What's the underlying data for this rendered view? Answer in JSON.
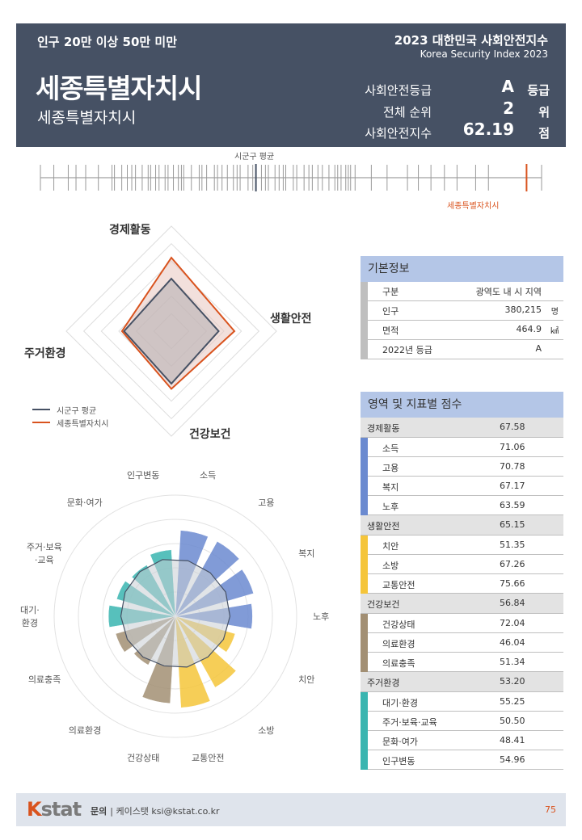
{
  "header": {
    "category": "인구 20만 이상 50만 미만",
    "city_name": "세종특별자치시",
    "city_subtitle": "세종특별자치시",
    "index_title": "2023 대한민국 사회안전지수",
    "index_title_en": "Korea Security Index 2023",
    "stats": [
      {
        "label": "사회안전등급",
        "value": "A",
        "unit": "등급"
      },
      {
        "label": "전체 순위",
        "value": "2",
        "unit": "위"
      },
      {
        "label": "사회안전지수",
        "value": "62.19",
        "unit": "점"
      }
    ]
  },
  "strip": {
    "avg_label": "시군구 평균",
    "city_label": "세종특별자치시",
    "avg_position_fraction": 0.43,
    "city_position_fraction": 0.97
  },
  "radar": {
    "axes": [
      "경제활동",
      "생활안전",
      "건강보건",
      "주거환경"
    ],
    "legend": [
      "시군구 평균",
      "세종특별자치시"
    ],
    "avg_fractions": [
      0.5,
      0.45,
      0.5,
      0.45
    ],
    "city_fractions": [
      0.7,
      0.6,
      0.55,
      0.47
    ],
    "colors": {
      "avg": "#465164",
      "city": "#d9531e"
    }
  },
  "polar": {
    "labels": [
      "소득",
      "고용",
      "복지",
      "노후",
      "치안",
      "소방",
      "교통안전",
      "건강상태",
      "의료환경",
      "의료충족",
      "대기·\n환경",
      "주거·보육\n·교육",
      "문화·여가",
      "인구변동"
    ],
    "values": [
      71.06,
      70.78,
      67.17,
      63.59,
      51.35,
      67.26,
      75.66,
      72.04,
      46.04,
      51.34,
      55.25,
      50.5,
      48.41,
      54.96
    ],
    "avg_values": [
      47,
      46,
      46,
      45,
      44,
      43,
      43,
      42,
      43,
      44,
      45,
      46,
      47,
      48
    ],
    "colors": [
      "#6b8ad0",
      "#6b8ad0",
      "#6b8ad0",
      "#6b8ad0",
      "#f5c53a",
      "#f5c53a",
      "#f5c53a",
      "#a28f73",
      "#a28f73",
      "#a28f73",
      "#3ab5b0",
      "#3ab5b0",
      "#3ab5b0",
      "#3ab5b0"
    ],
    "max": 100
  },
  "basic_info": {
    "title": "기본정보",
    "rows": [
      {
        "key": "구분",
        "value": "광역도 내 시 지역",
        "unit": ""
      },
      {
        "key": "인구",
        "value": "380,215",
        "unit": "명"
      },
      {
        "key": "면적",
        "value": "464.9",
        "unit": "㎢"
      },
      {
        "key": "2022년 등급",
        "value": "A",
        "unit": ""
      }
    ]
  },
  "scores": {
    "title": "영역 및 지표별 점수",
    "sections": [
      {
        "name": "경제활동",
        "score": "67.58",
        "color": "#6b8ad0",
        "items": [
          {
            "name": "소득",
            "score": "71.06"
          },
          {
            "name": "고용",
            "score": "70.78"
          },
          {
            "name": "복지",
            "score": "67.17"
          },
          {
            "name": "노후",
            "score": "63.59"
          }
        ]
      },
      {
        "name": "생활안전",
        "score": "65.15",
        "color": "#f5c53a",
        "items": [
          {
            "name": "치안",
            "score": "51.35"
          },
          {
            "name": "소방",
            "score": "67.26"
          },
          {
            "name": "교통안전",
            "score": "75.66"
          }
        ]
      },
      {
        "name": "건강보건",
        "score": "56.84",
        "color": "#a28f73",
        "items": [
          {
            "name": "건강상태",
            "score": "72.04"
          },
          {
            "name": "의료환경",
            "score": "46.04"
          },
          {
            "name": "의료충족",
            "score": "51.34"
          }
        ]
      },
      {
        "name": "주거환경",
        "score": "53.20",
        "color": "#3ab5b0",
        "items": [
          {
            "name": "대기·환경",
            "score": "55.25"
          },
          {
            "name": "주거·보육·교육",
            "score": "50.50"
          },
          {
            "name": "문화·여가",
            "score": "48.41"
          },
          {
            "name": "인구변동",
            "score": "54.96"
          }
        ]
      }
    ]
  },
  "footer": {
    "logo_k": "K",
    "logo_rest": "stat",
    "contact_label": "문의",
    "contact_text": "| 케이스탯 ksi@kstat.co.kr",
    "page_number": "75"
  }
}
